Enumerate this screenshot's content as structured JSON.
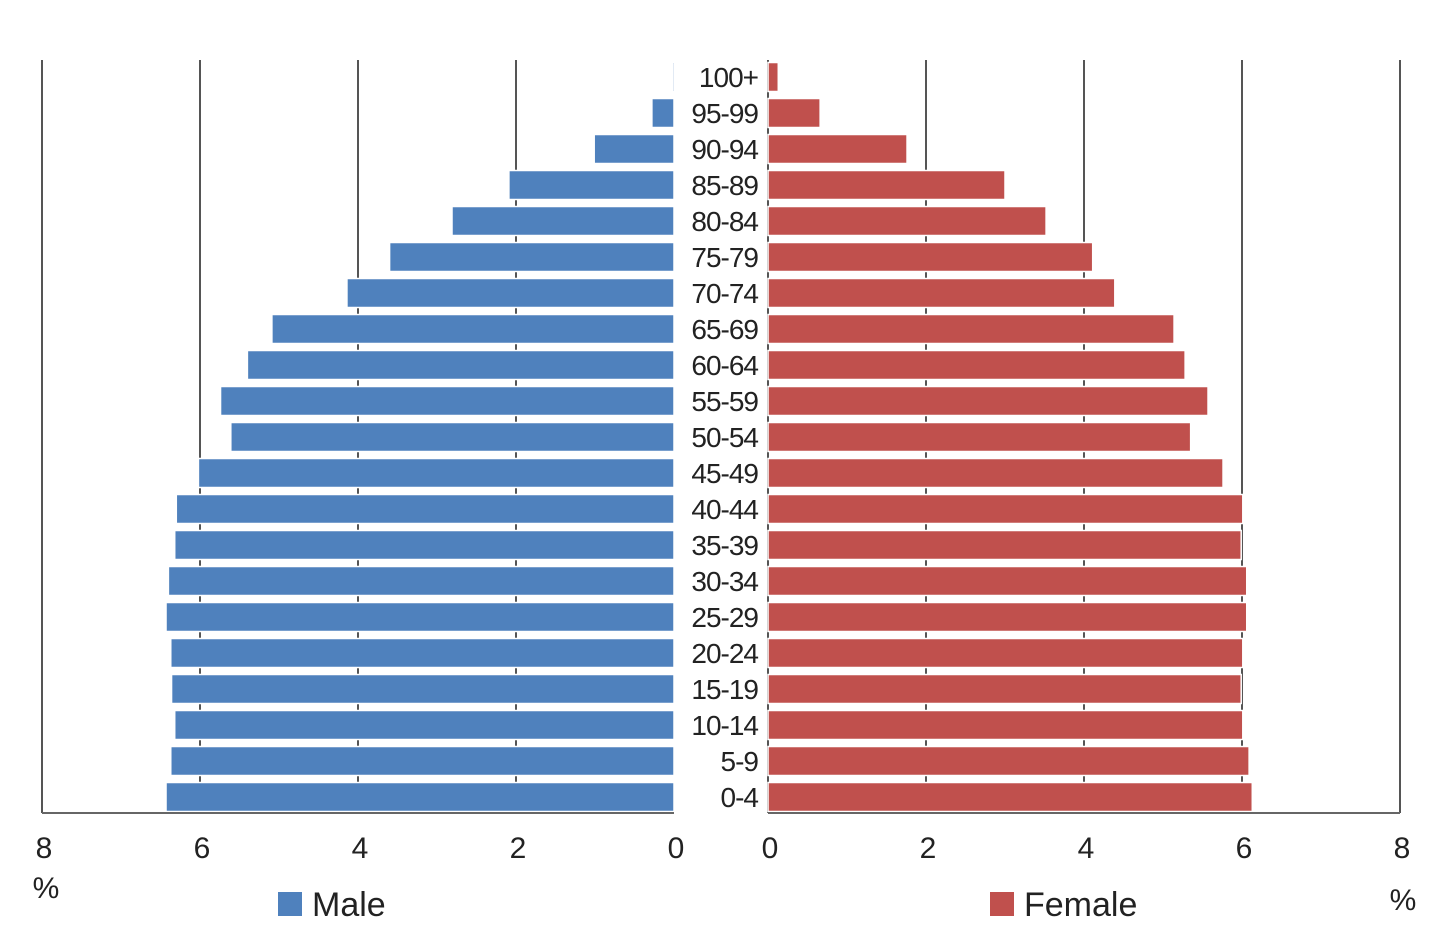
{
  "chart_data": {
    "type": "bar",
    "orientation": "horizontal",
    "variant": "population-pyramid",
    "categories": [
      "100+",
      "95-99",
      "90-94",
      "85-89",
      "80-84",
      "75-79",
      "70-74",
      "65-69",
      "60-64",
      "55-59",
      "50-54",
      "45-49",
      "40-44",
      "35-39",
      "30-34",
      "25-29",
      "20-24",
      "15-19",
      "10-14",
      "5-9",
      "0-4"
    ],
    "series": [
      {
        "name": "Male",
        "color": "#4F81BD",
        "side": "left",
        "values": [
          0.02,
          0.28,
          1.01,
          2.09,
          2.81,
          3.6,
          4.14,
          5.09,
          5.4,
          5.74,
          5.61,
          6.02,
          6.3,
          6.32,
          6.4,
          6.43,
          6.37,
          6.36,
          6.32,
          6.37,
          6.43
        ]
      },
      {
        "name": "Female",
        "color": "#C0504D",
        "side": "right",
        "values": [
          0.13,
          0.66,
          1.76,
          3.0,
          3.52,
          4.11,
          4.39,
          5.14,
          5.28,
          5.57,
          5.35,
          5.76,
          6.01,
          5.99,
          6.06,
          6.06,
          6.01,
          5.99,
          6.01,
          6.09,
          6.13
        ]
      }
    ],
    "xlim": [
      0,
      8
    ],
    "left_ticks": [
      "8",
      "6",
      "4",
      "2",
      "0"
    ],
    "right_ticks": [
      "0",
      "2",
      "4",
      "6",
      "8"
    ],
    "left_unit": "%",
    "right_unit": "%",
    "grid": true,
    "legend": "bottom"
  }
}
